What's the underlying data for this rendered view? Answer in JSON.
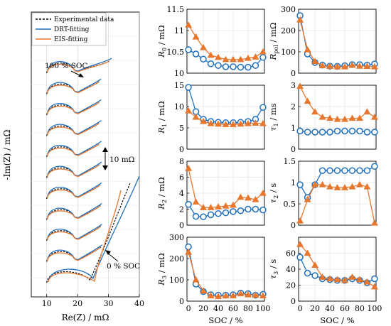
{
  "colors": {
    "exp": "#000000",
    "drt": "#1f6fbf",
    "eis": "#e8772e"
  },
  "legend": {
    "exp": "Experimental data",
    "drt": "DRT-fitting",
    "eis": "EIS-fitting"
  },
  "annotations": {
    "soc100": "100 % SOC",
    "soc0": "0 % SOC",
    "scale": "10 mΩ"
  },
  "chart_data": [
    {
      "type": "line",
      "title": "",
      "xlabel": "Re(Z) / mΩ",
      "ylabel": "-Im(Z) / mΩ",
      "xlim": [
        5,
        40
      ],
      "xticks": [
        10,
        20,
        30,
        40
      ],
      "grid": true,
      "legend_position": "top-left",
      "note": "Nyquist curves offset vertically from 0 % SOC (bottom) to 100 % SOC (top); scale bar 10 mΩ"
    },
    {
      "type": "line",
      "title": "",
      "xlabel": "",
      "ylabel": "R_0 / mΩ",
      "xlim": [
        0,
        100
      ],
      "ylim": [
        10,
        11.5
      ],
      "yticks": [
        10,
        10.5,
        11,
        11.5
      ],
      "x": [
        0,
        10,
        20,
        30,
        40,
        50,
        60,
        70,
        80,
        90,
        100
      ],
      "series": [
        {
          "color": "drt",
          "values": [
            10.55,
            10.45,
            10.33,
            10.22,
            10.18,
            10.15,
            10.15,
            10.14,
            10.14,
            10.18,
            10.37
          ]
        },
        {
          "color": "eis",
          "values": [
            11.13,
            10.85,
            10.6,
            10.42,
            10.37,
            10.32,
            10.32,
            10.32,
            10.35,
            10.38,
            10.5
          ]
        }
      ]
    },
    {
      "type": "line",
      "title": "",
      "xlabel": "",
      "ylabel": "R_pol / mΩ",
      "xlim": [
        0,
        100
      ],
      "ylim": [
        0,
        300
      ],
      "yticks": [
        0,
        100,
        200,
        300
      ],
      "x": [
        0,
        10,
        20,
        30,
        40,
        50,
        60,
        70,
        80,
        90,
        100
      ],
      "series": [
        {
          "color": "drt",
          "values": [
            270,
            90,
            50,
            38,
            33,
            32,
            35,
            40,
            40,
            38,
            43
          ]
        },
        {
          "color": "eis",
          "values": [
            250,
            110,
            55,
            35,
            32,
            30,
            30,
            37,
            33,
            32,
            30
          ]
        }
      ]
    },
    {
      "type": "line",
      "title": "",
      "xlabel": "",
      "ylabel": "R_1 / mΩ",
      "xlim": [
        0,
        100
      ],
      "ylim": [
        0,
        15
      ],
      "yticks": [
        0,
        5,
        10,
        15
      ],
      "x": [
        0,
        10,
        20,
        30,
        40,
        50,
        60,
        70,
        80,
        90,
        100
      ],
      "series": [
        {
          "color": "drt",
          "values": [
            14.5,
            8.8,
            7.0,
            6.5,
            6.3,
            6.2,
            6.2,
            6.3,
            6.5,
            7.0,
            9.8
          ]
        },
        {
          "color": "eis",
          "values": [
            9.0,
            7.5,
            6.5,
            6.0,
            5.9,
            5.8,
            5.8,
            5.9,
            6.0,
            6.1,
            6.0
          ]
        }
      ]
    },
    {
      "type": "line",
      "title": "",
      "xlabel": "",
      "ylabel": "τ_1 / ms",
      "xlim": [
        0,
        100
      ],
      "ylim": [
        0,
        3
      ],
      "yticks": [
        0,
        1,
        2,
        3
      ],
      "x": [
        0,
        10,
        20,
        30,
        40,
        50,
        60,
        70,
        80,
        90,
        100
      ],
      "series": [
        {
          "color": "drt",
          "values": [
            0.85,
            0.8,
            0.8,
            0.8,
            0.8,
            0.85,
            0.85,
            0.85,
            0.85,
            0.8,
            0.8
          ]
        },
        {
          "color": "eis",
          "values": [
            2.95,
            2.25,
            1.75,
            1.5,
            1.45,
            1.4,
            1.4,
            1.45,
            1.45,
            1.75,
            1.5
          ]
        }
      ]
    },
    {
      "type": "line",
      "title": "",
      "xlabel": "",
      "ylabel": "R_2 / mΩ",
      "xlim": [
        0,
        100
      ],
      "ylim": [
        0,
        8
      ],
      "yticks": [
        0,
        2,
        4,
        6,
        8
      ],
      "x": [
        0,
        10,
        20,
        30,
        40,
        50,
        60,
        70,
        80,
        90,
        100
      ],
      "series": [
        {
          "color": "drt",
          "values": [
            2.6,
            1.1,
            1.05,
            1.3,
            1.45,
            1.55,
            1.7,
            1.8,
            2.0,
            2.0,
            1.9
          ]
        },
        {
          "color": "eis",
          "values": [
            7.1,
            2.9,
            2.2,
            2.2,
            2.3,
            2.4,
            2.5,
            3.5,
            3.4,
            3.2,
            4.0
          ]
        }
      ]
    },
    {
      "type": "line",
      "title": "",
      "xlabel": "",
      "ylabel": "τ_2 / s",
      "xlim": [
        0,
        100
      ],
      "ylim": [
        0,
        1.5
      ],
      "yticks": [
        0,
        0.5,
        1,
        1.5
      ],
      "x": [
        0,
        10,
        20,
        30,
        40,
        50,
        60,
        70,
        80,
        90,
        100
      ],
      "series": [
        {
          "color": "drt",
          "values": [
            0.95,
            0.65,
            0.95,
            1.28,
            1.28,
            1.28,
            1.28,
            1.28,
            1.28,
            1.28,
            1.38
          ]
        },
        {
          "color": "eis",
          "values": [
            0.1,
            0.6,
            0.95,
            0.95,
            0.9,
            0.88,
            0.88,
            0.9,
            0.95,
            0.9,
            0.05
          ]
        }
      ]
    },
    {
      "type": "line",
      "title": "",
      "xlabel": "SOC / %",
      "ylabel": "R_3 / mΩ",
      "xlim": [
        0,
        100
      ],
      "ylim": [
        0,
        300
      ],
      "yticks": [
        0,
        100,
        200,
        300
      ],
      "xticks": [
        0,
        20,
        40,
        60,
        80,
        100
      ],
      "x": [
        0,
        10,
        20,
        30,
        40,
        50,
        60,
        70,
        80,
        90,
        100
      ],
      "series": [
        {
          "color": "drt",
          "values": [
            255,
            80,
            45,
            30,
            28,
            28,
            30,
            38,
            35,
            28,
            32
          ]
        },
        {
          "color": "eis",
          "values": [
            230,
            100,
            48,
            25,
            22,
            25,
            25,
            35,
            30,
            28,
            25
          ]
        }
      ]
    },
    {
      "type": "line",
      "title": "",
      "xlabel": "SOC / %",
      "ylabel": "τ_3 / s",
      "xlim": [
        0,
        100
      ],
      "ylim": [
        0,
        80
      ],
      "yticks": [
        0,
        20,
        40,
        60
      ],
      "xticks": [
        0,
        20,
        40,
        60,
        80,
        100
      ],
      "x": [
        0,
        10,
        20,
        30,
        40,
        50,
        60,
        70,
        80,
        90,
        100
      ],
      "series": [
        {
          "color": "drt",
          "values": [
            55,
            35,
            32,
            28,
            27,
            26,
            26,
            28,
            26,
            23,
            28
          ]
        },
        {
          "color": "eis",
          "values": [
            71,
            60,
            45,
            30,
            28,
            27,
            26,
            30,
            27,
            24,
            18
          ]
        }
      ]
    }
  ]
}
